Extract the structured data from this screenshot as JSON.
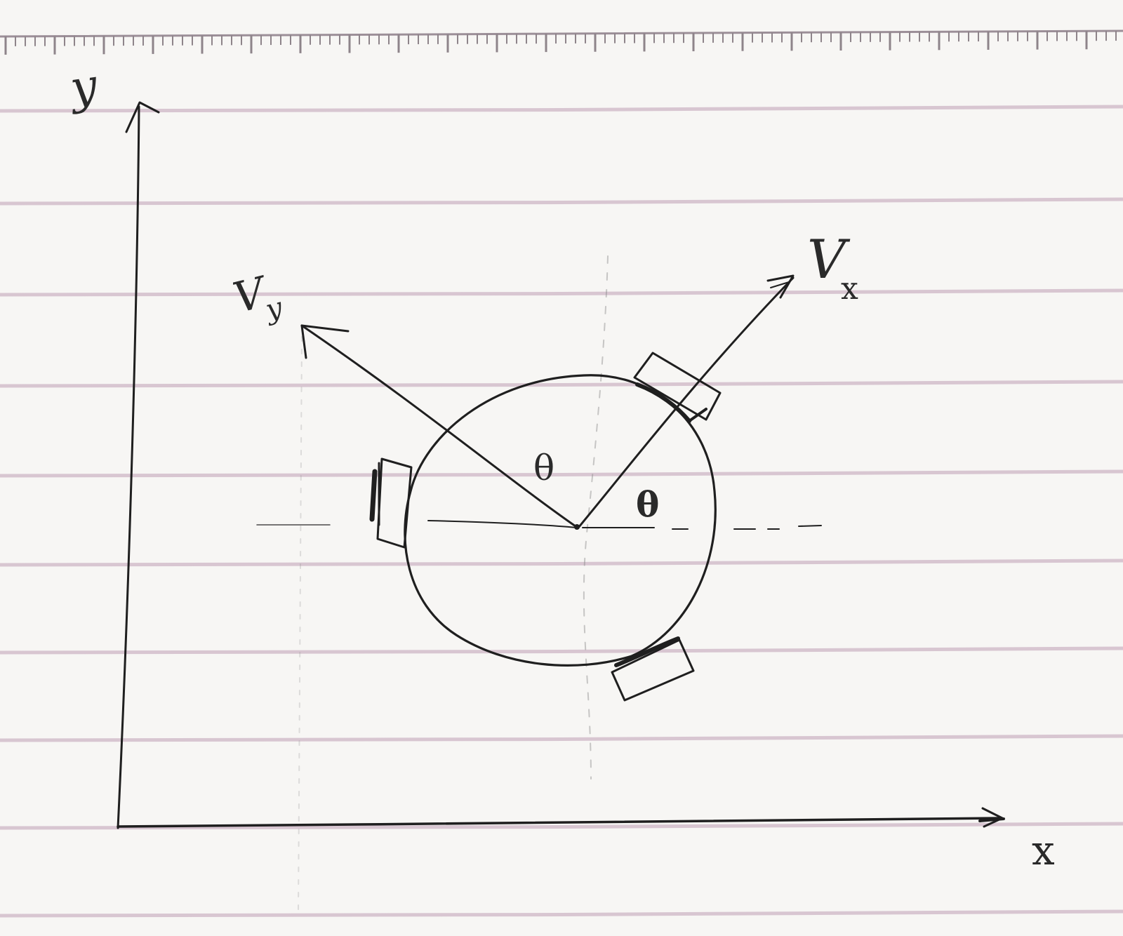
{
  "diagram": {
    "labels": {
      "x_axis": "x",
      "y_axis": "y",
      "vx": "V",
      "vx_sub": "x",
      "vy": "V",
      "vy_sub": "y",
      "theta_left": "θ",
      "theta_right": "θ"
    },
    "colors": {
      "paper": "#f7f6f4",
      "ruled_line": "#cdb6c6",
      "ink": "#1f1f1f"
    }
  }
}
